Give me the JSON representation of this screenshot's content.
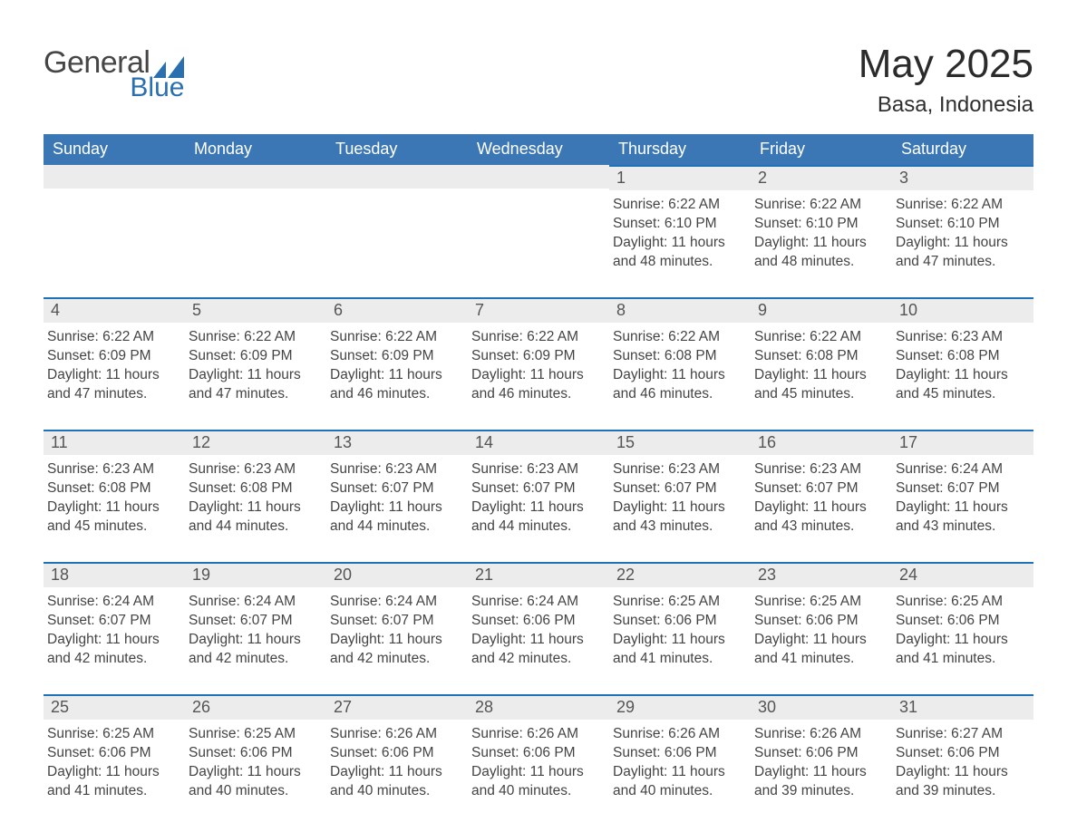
{
  "logo": {
    "word1": "General",
    "word2": "Blue"
  },
  "title": "May 2025",
  "location": "Basa, Indonesia",
  "colors": {
    "header_bg": "#3b77b5",
    "accent_line": "#1f72b8",
    "stripe": "#ececec",
    "logo_blue": "#2a6fb0"
  },
  "weekdays": [
    "Sunday",
    "Monday",
    "Tuesday",
    "Wednesday",
    "Thursday",
    "Friday",
    "Saturday"
  ],
  "weeks": [
    [
      null,
      null,
      null,
      null,
      {
        "n": "1",
        "sr": "6:22 AM",
        "ss": "6:10 PM",
        "dl": "11 hours and 48 minutes."
      },
      {
        "n": "2",
        "sr": "6:22 AM",
        "ss": "6:10 PM",
        "dl": "11 hours and 48 minutes."
      },
      {
        "n": "3",
        "sr": "6:22 AM",
        "ss": "6:10 PM",
        "dl": "11 hours and 47 minutes."
      }
    ],
    [
      {
        "n": "4",
        "sr": "6:22 AM",
        "ss": "6:09 PM",
        "dl": "11 hours and 47 minutes."
      },
      {
        "n": "5",
        "sr": "6:22 AM",
        "ss": "6:09 PM",
        "dl": "11 hours and 47 minutes."
      },
      {
        "n": "6",
        "sr": "6:22 AM",
        "ss": "6:09 PM",
        "dl": "11 hours and 46 minutes."
      },
      {
        "n": "7",
        "sr": "6:22 AM",
        "ss": "6:09 PM",
        "dl": "11 hours and 46 minutes."
      },
      {
        "n": "8",
        "sr": "6:22 AM",
        "ss": "6:08 PM",
        "dl": "11 hours and 46 minutes."
      },
      {
        "n": "9",
        "sr": "6:22 AM",
        "ss": "6:08 PM",
        "dl": "11 hours and 45 minutes."
      },
      {
        "n": "10",
        "sr": "6:23 AM",
        "ss": "6:08 PM",
        "dl": "11 hours and 45 minutes."
      }
    ],
    [
      {
        "n": "11",
        "sr": "6:23 AM",
        "ss": "6:08 PM",
        "dl": "11 hours and 45 minutes."
      },
      {
        "n": "12",
        "sr": "6:23 AM",
        "ss": "6:08 PM",
        "dl": "11 hours and 44 minutes."
      },
      {
        "n": "13",
        "sr": "6:23 AM",
        "ss": "6:07 PM",
        "dl": "11 hours and 44 minutes."
      },
      {
        "n": "14",
        "sr": "6:23 AM",
        "ss": "6:07 PM",
        "dl": "11 hours and 44 minutes."
      },
      {
        "n": "15",
        "sr": "6:23 AM",
        "ss": "6:07 PM",
        "dl": "11 hours and 43 minutes."
      },
      {
        "n": "16",
        "sr": "6:23 AM",
        "ss": "6:07 PM",
        "dl": "11 hours and 43 minutes."
      },
      {
        "n": "17",
        "sr": "6:24 AM",
        "ss": "6:07 PM",
        "dl": "11 hours and 43 minutes."
      }
    ],
    [
      {
        "n": "18",
        "sr": "6:24 AM",
        "ss": "6:07 PM",
        "dl": "11 hours and 42 minutes."
      },
      {
        "n": "19",
        "sr": "6:24 AM",
        "ss": "6:07 PM",
        "dl": "11 hours and 42 minutes."
      },
      {
        "n": "20",
        "sr": "6:24 AM",
        "ss": "6:07 PM",
        "dl": "11 hours and 42 minutes."
      },
      {
        "n": "21",
        "sr": "6:24 AM",
        "ss": "6:06 PM",
        "dl": "11 hours and 42 minutes."
      },
      {
        "n": "22",
        "sr": "6:25 AM",
        "ss": "6:06 PM",
        "dl": "11 hours and 41 minutes."
      },
      {
        "n": "23",
        "sr": "6:25 AM",
        "ss": "6:06 PM",
        "dl": "11 hours and 41 minutes."
      },
      {
        "n": "24",
        "sr": "6:25 AM",
        "ss": "6:06 PM",
        "dl": "11 hours and 41 minutes."
      }
    ],
    [
      {
        "n": "25",
        "sr": "6:25 AM",
        "ss": "6:06 PM",
        "dl": "11 hours and 41 minutes."
      },
      {
        "n": "26",
        "sr": "6:25 AM",
        "ss": "6:06 PM",
        "dl": "11 hours and 40 minutes."
      },
      {
        "n": "27",
        "sr": "6:26 AM",
        "ss": "6:06 PM",
        "dl": "11 hours and 40 minutes."
      },
      {
        "n": "28",
        "sr": "6:26 AM",
        "ss": "6:06 PM",
        "dl": "11 hours and 40 minutes."
      },
      {
        "n": "29",
        "sr": "6:26 AM",
        "ss": "6:06 PM",
        "dl": "11 hours and 40 minutes."
      },
      {
        "n": "30",
        "sr": "6:26 AM",
        "ss": "6:06 PM",
        "dl": "11 hours and 39 minutes."
      },
      {
        "n": "31",
        "sr": "6:27 AM",
        "ss": "6:06 PM",
        "dl": "11 hours and 39 minutes."
      }
    ]
  ],
  "labels": {
    "sunrise": "Sunrise: ",
    "sunset": "Sunset: ",
    "daylight": "Daylight: "
  }
}
